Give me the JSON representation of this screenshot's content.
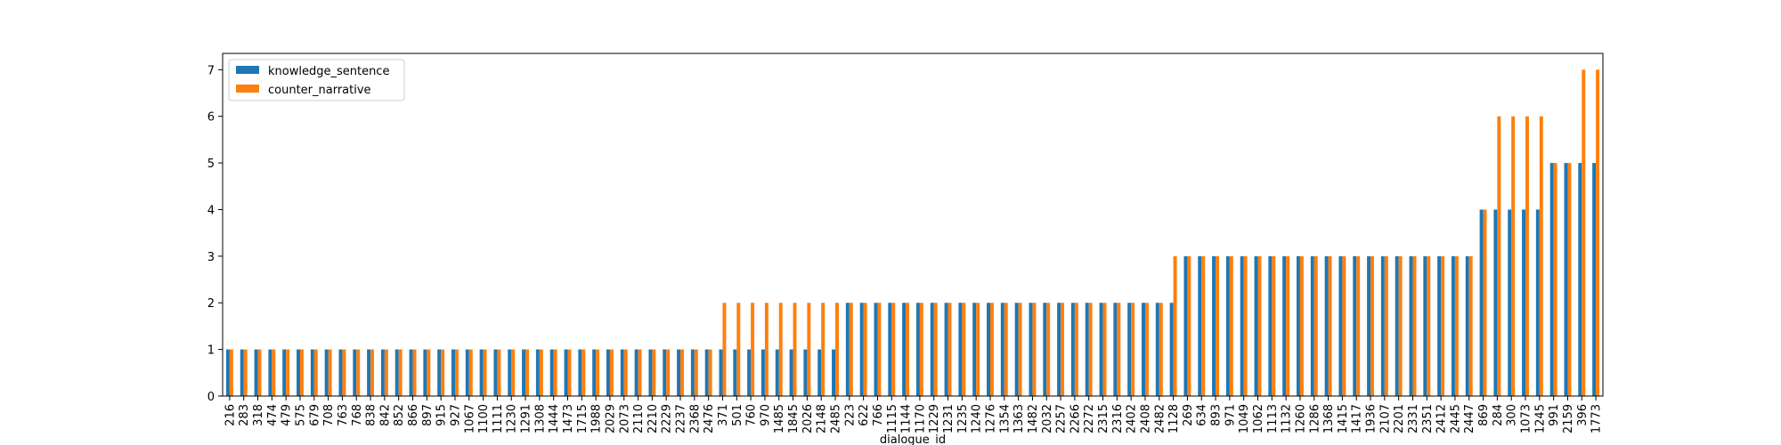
{
  "chart_data": {
    "type": "bar",
    "title": "",
    "xlabel": "dialogue_id",
    "ylabel": "",
    "ylim": [
      0,
      7.35
    ],
    "yticks": [
      0,
      1,
      2,
      3,
      4,
      5,
      6,
      7
    ],
    "grid": false,
    "legend_position": "top-left",
    "categories": [
      "216",
      "283",
      "318",
      "474",
      "479",
      "575",
      "679",
      "708",
      "763",
      "768",
      "838",
      "842",
      "852",
      "866",
      "897",
      "915",
      "927",
      "1067",
      "1100",
      "1111",
      "1230",
      "1291",
      "1308",
      "1444",
      "1473",
      "1715",
      "1988",
      "2029",
      "2073",
      "2110",
      "2210",
      "2229",
      "2237",
      "2368",
      "2476",
      "371",
      "501",
      "760",
      "970",
      "1485",
      "1845",
      "2026",
      "2148",
      "2485",
      "223",
      "622",
      "766",
      "1115",
      "1144",
      "1170",
      "1229",
      "1231",
      "1235",
      "1240",
      "1276",
      "1354",
      "1363",
      "1482",
      "2032",
      "2257",
      "2266",
      "2272",
      "2315",
      "2316",
      "2402",
      "2408",
      "2482",
      "1128",
      "269",
      "634",
      "893",
      "971",
      "1049",
      "1062",
      "1113",
      "1132",
      "1260",
      "1286",
      "1368",
      "1415",
      "1417",
      "1936",
      "2107",
      "2201",
      "2331",
      "2351",
      "2412",
      "2445",
      "2447",
      "869",
      "284",
      "300",
      "1073",
      "1245",
      "991",
      "2159",
      "396",
      "1773"
    ],
    "series": [
      {
        "name": "knowledge_sentence",
        "color": "#1f77b4",
        "values": [
          1,
          1,
          1,
          1,
          1,
          1,
          1,
          1,
          1,
          1,
          1,
          1,
          1,
          1,
          1,
          1,
          1,
          1,
          1,
          1,
          1,
          1,
          1,
          1,
          1,
          1,
          1,
          1,
          1,
          1,
          1,
          1,
          1,
          1,
          1,
          1,
          1,
          1,
          1,
          1,
          1,
          1,
          1,
          1,
          2,
          2,
          2,
          2,
          2,
          2,
          2,
          2,
          2,
          2,
          2,
          2,
          2,
          2,
          2,
          2,
          2,
          2,
          2,
          2,
          2,
          2,
          2,
          2,
          3,
          3,
          3,
          3,
          3,
          3,
          3,
          3,
          3,
          3,
          3,
          3,
          3,
          3,
          3,
          3,
          3,
          3,
          3,
          3,
          3,
          4,
          4,
          4,
          4,
          4,
          5,
          5,
          5,
          5
        ]
      },
      {
        "name": "counter_narrative",
        "color": "#ff7f0e",
        "values": [
          1,
          1,
          1,
          1,
          1,
          1,
          1,
          1,
          1,
          1,
          1,
          1,
          1,
          1,
          1,
          1,
          1,
          1,
          1,
          1,
          1,
          1,
          1,
          1,
          1,
          1,
          1,
          1,
          1,
          1,
          1,
          1,
          1,
          1,
          1,
          2,
          2,
          2,
          2,
          2,
          2,
          2,
          2,
          2,
          2,
          2,
          2,
          2,
          2,
          2,
          2,
          2,
          2,
          2,
          2,
          2,
          2,
          2,
          2,
          2,
          2,
          2,
          2,
          2,
          2,
          2,
          2,
          3,
          3,
          3,
          3,
          3,
          3,
          3,
          3,
          3,
          3,
          3,
          3,
          3,
          3,
          3,
          3,
          3,
          3,
          3,
          3,
          3,
          3,
          4,
          6,
          6,
          6,
          6,
          5,
          5,
          7,
          7
        ]
      }
    ]
  }
}
